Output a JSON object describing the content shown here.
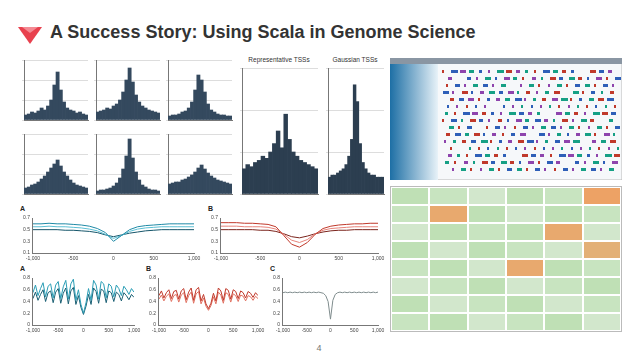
{
  "slide": {
    "title": "A Success Story: Using Scala in Genome Science",
    "page_number": 4
  },
  "chart_data": [
    {
      "type": "histogram",
      "bins": [
        -1000,
        -900,
        -800,
        -700,
        -600,
        -500,
        -400,
        -300,
        -200,
        -100,
        0,
        100,
        200,
        300,
        400,
        500,
        600,
        700,
        800,
        900,
        1000
      ],
      "counts": [
        5,
        6,
        8,
        7,
        9,
        12,
        10,
        14,
        20,
        35,
        48,
        30,
        18,
        12,
        10,
        9,
        7,
        8,
        6,
        5
      ],
      "color": "#34495e",
      "ylim": [
        0,
        60
      ],
      "yticks": [
        0,
        20,
        40,
        60
      ],
      "grid": true,
      "tick_labels": false
    },
    {
      "type": "histogram",
      "bins": [
        -1000,
        -900,
        -800,
        -700,
        -600,
        -500,
        -400,
        -300,
        -200,
        -100,
        0,
        100,
        200,
        300,
        400,
        500,
        600,
        700,
        800,
        900,
        1000
      ],
      "counts": [
        8,
        9,
        10,
        12,
        11,
        14,
        16,
        20,
        28,
        40,
        52,
        38,
        25,
        18,
        14,
        12,
        10,
        9,
        8,
        7
      ],
      "color": "#34495e",
      "ylim": [
        0,
        60
      ],
      "yticks": [
        0,
        20,
        40,
        60
      ],
      "grid": true,
      "tick_labels": false
    },
    {
      "type": "histogram",
      "bins": [
        -1000,
        -900,
        -800,
        -700,
        -600,
        -500,
        -400,
        -300,
        -200,
        -100,
        0,
        100,
        200,
        300,
        400,
        500,
        600,
        700,
        800,
        900,
        1000
      ],
      "counts": [
        4,
        5,
        5,
        6,
        8,
        9,
        12,
        18,
        30,
        45,
        40,
        28,
        16,
        10,
        8,
        6,
        5,
        5,
        4,
        4
      ],
      "color": "#34495e",
      "ylim": [
        0,
        60
      ],
      "yticks": [
        0,
        20,
        40,
        60
      ],
      "grid": true,
      "tick_labels": false
    },
    {
      "type": "histogram",
      "bins": [
        -1000,
        -900,
        -800,
        -700,
        -600,
        -500,
        -400,
        -300,
        -200,
        -100,
        0,
        100,
        200,
        300,
        400,
        500,
        600,
        700,
        800,
        900,
        1000
      ],
      "counts": [
        6,
        7,
        9,
        10,
        12,
        15,
        18,
        22,
        26,
        30,
        34,
        28,
        22,
        18,
        14,
        11,
        9,
        8,
        7,
        6
      ],
      "color": "#34495e",
      "ylim": [
        0,
        60
      ],
      "yticks": [
        0,
        20,
        40,
        60
      ],
      "grid": true,
      "tick_labels": false
    },
    {
      "type": "histogram",
      "bins": [
        -1000,
        -900,
        -800,
        -700,
        -600,
        -500,
        -400,
        -300,
        -200,
        -100,
        0,
        100,
        200,
        300,
        400,
        500,
        600,
        700,
        800,
        900,
        1000
      ],
      "counts": [
        3,
        4,
        4,
        5,
        6,
        8,
        11,
        16,
        25,
        38,
        55,
        36,
        22,
        14,
        9,
        7,
        5,
        4,
        4,
        3
      ],
      "color": "#34495e",
      "ylim": [
        0,
        60
      ],
      "yticks": [
        0,
        20,
        40,
        60
      ],
      "grid": true,
      "tick_labels": false
    },
    {
      "type": "histogram",
      "bins": [
        -1000,
        -900,
        -800,
        -700,
        -600,
        -500,
        -400,
        -300,
        -200,
        -100,
        0,
        100,
        200,
        300,
        400,
        500,
        600,
        700,
        800,
        900,
        1000
      ],
      "counts": [
        10,
        11,
        12,
        12,
        14,
        15,
        17,
        19,
        22,
        26,
        29,
        25,
        21,
        18,
        16,
        14,
        13,
        12,
        11,
        10
      ],
      "color": "#34495e",
      "ylim": [
        0,
        60
      ],
      "yticks": [
        0,
        20,
        40,
        60
      ],
      "grid": true,
      "tick_labels": false
    },
    {
      "type": "histogram",
      "title": "Representative TSSs",
      "bins": [
        -1000,
        -900,
        -800,
        -700,
        -600,
        -500,
        -400,
        -300,
        -200,
        -100,
        0,
        100,
        200,
        300,
        400,
        500,
        600,
        700,
        800,
        900,
        1000
      ],
      "counts": [
        12,
        14,
        13,
        15,
        16,
        18,
        17,
        20,
        24,
        30,
        22,
        38,
        26,
        20,
        18,
        16,
        15,
        14,
        13,
        12
      ],
      "color": "#2c3e50",
      "ylim": [
        0,
        60
      ],
      "yticks": [
        0,
        20,
        40,
        60
      ],
      "grid": true,
      "tick_labels": false
    },
    {
      "type": "histogram",
      "title": "Gaussian TSSs",
      "bins": [
        -1000,
        -900,
        -800,
        -700,
        -600,
        -500,
        -400,
        -300,
        -200,
        -100,
        0,
        100,
        200,
        300,
        400,
        500,
        600,
        700,
        800,
        900,
        1000
      ],
      "counts": [
        8,
        9,
        9,
        10,
        11,
        12,
        14,
        18,
        26,
        52,
        44,
        24,
        15,
        12,
        10,
        9,
        9,
        8,
        8,
        8
      ],
      "color": "#2c3e50",
      "ylim": [
        0,
        60
      ],
      "yticks": [
        0,
        20,
        40,
        60
      ],
      "grid": true,
      "tick_labels": false
    },
    {
      "type": "line",
      "panel_label": "A",
      "x": [
        -1000,
        -900,
        -800,
        -700,
        -600,
        -500,
        -400,
        -300,
        -200,
        -100,
        0,
        100,
        200,
        300,
        400,
        500,
        600,
        700,
        800,
        900,
        1000
      ],
      "series": [
        {
          "color": "#1f8aa6",
          "values": [
            0.6,
            0.6,
            0.61,
            0.6,
            0.6,
            0.59,
            0.58,
            0.56,
            0.52,
            0.45,
            0.3,
            0.4,
            0.5,
            0.55,
            0.57,
            0.58,
            0.59,
            0.6,
            0.6,
            0.6,
            0.6
          ]
        },
        {
          "color": "#5bbfd4",
          "values": [
            0.55,
            0.55,
            0.56,
            0.55,
            0.55,
            0.54,
            0.53,
            0.51,
            0.48,
            0.42,
            0.35,
            0.4,
            0.47,
            0.51,
            0.53,
            0.54,
            0.55,
            0.55,
            0.55,
            0.55,
            0.55
          ]
        },
        {
          "color": "#15556a",
          "values": [
            0.5,
            0.5,
            0.5,
            0.5,
            0.49,
            0.49,
            0.48,
            0.47,
            0.45,
            0.41,
            0.38,
            0.41,
            0.44,
            0.46,
            0.48,
            0.49,
            0.5,
            0.5,
            0.5,
            0.5,
            0.5
          ]
        }
      ],
      "xlim": [
        -1000,
        1000
      ],
      "xticks": [
        {
          "value": -1000,
          "label": "-1,000"
        },
        -500,
        0,
        500,
        {
          "value": 1000,
          "label": "1,000"
        }
      ],
      "ylim": [
        0.1,
        0.7
      ],
      "yticks": [
        0.1,
        0.3,
        0.5,
        0.7
      ],
      "grid": false
    },
    {
      "type": "line",
      "panel_label": "B",
      "x": [
        -1000,
        -900,
        -800,
        -700,
        -600,
        -500,
        -400,
        -300,
        -200,
        -100,
        0,
        100,
        200,
        300,
        400,
        500,
        600,
        700,
        800,
        900,
        1000
      ],
      "series": [
        {
          "color": "#c0392b",
          "values": [
            0.62,
            0.62,
            0.62,
            0.61,
            0.61,
            0.6,
            0.59,
            0.55,
            0.4,
            0.25,
            0.2,
            0.28,
            0.42,
            0.52,
            0.56,
            0.58,
            0.59,
            0.6,
            0.6,
            0.61,
            0.61
          ]
        },
        {
          "color": "#e8837a",
          "values": [
            0.56,
            0.56,
            0.56,
            0.55,
            0.55,
            0.55,
            0.54,
            0.51,
            0.42,
            0.32,
            0.28,
            0.33,
            0.43,
            0.49,
            0.52,
            0.53,
            0.54,
            0.55,
            0.55,
            0.55,
            0.55
          ]
        },
        {
          "color": "#7b241c",
          "values": [
            0.5,
            0.5,
            0.5,
            0.5,
            0.5,
            0.49,
            0.49,
            0.47,
            0.43,
            0.38,
            0.36,
            0.39,
            0.43,
            0.46,
            0.48,
            0.49,
            0.49,
            0.5,
            0.5,
            0.5,
            0.5
          ]
        }
      ],
      "xlim": [
        -1000,
        1000
      ],
      "xticks": [
        {
          "value": -1000,
          "label": "-1,000"
        },
        -500,
        0,
        500,
        {
          "value": 1000,
          "label": "1,000"
        }
      ],
      "ylim": [
        0.1,
        0.7
      ],
      "yticks": [
        0.1,
        0.3,
        0.5,
        0.7
      ],
      "grid": false
    },
    {
      "type": "line",
      "panel_label": "A",
      "x": [
        -1000,
        -950,
        -900,
        -850,
        -800,
        -750,
        -700,
        -650,
        -600,
        -550,
        -500,
        -450,
        -400,
        -350,
        -300,
        -250,
        -200,
        -150,
        -100,
        -50,
        0,
        50,
        100,
        150,
        200,
        250,
        300,
        350,
        400,
        450,
        500,
        550,
        600,
        650,
        700,
        750,
        800,
        850,
        900,
        950,
        1000
      ],
      "series": [
        {
          "color": "#2a9db5",
          "values": [
            0.55,
            0.68,
            0.5,
            0.62,
            0.72,
            0.48,
            0.66,
            0.7,
            0.46,
            0.68,
            0.74,
            0.45,
            0.65,
            0.76,
            0.44,
            0.7,
            0.78,
            0.42,
            0.6,
            0.35,
            0.2,
            0.38,
            0.62,
            0.42,
            0.76,
            0.68,
            0.44,
            0.74,
            0.7,
            0.46,
            0.7,
            0.66,
            0.48,
            0.68,
            0.62,
            0.5,
            0.66,
            0.6,
            0.52,
            0.62,
            0.56
          ]
        },
        {
          "color": "#1a5f73",
          "values": [
            0.45,
            0.56,
            0.42,
            0.52,
            0.6,
            0.4,
            0.55,
            0.58,
            0.38,
            0.56,
            0.62,
            0.37,
            0.54,
            0.63,
            0.36,
            0.58,
            0.64,
            0.35,
            0.5,
            0.3,
            0.18,
            0.32,
            0.52,
            0.35,
            0.63,
            0.57,
            0.37,
            0.61,
            0.58,
            0.38,
            0.58,
            0.55,
            0.4,
            0.56,
            0.52,
            0.41,
            0.55,
            0.5,
            0.43,
            0.52,
            0.47
          ]
        }
      ],
      "xlim": [
        -1000,
        1000
      ],
      "xticks": [
        {
          "value": -1000,
          "label": "-1,000"
        },
        -500,
        0,
        500,
        {
          "value": 1000,
          "label": "1,000"
        }
      ],
      "ylim": [
        0,
        0.8
      ],
      "yticks": [
        0,
        0.2,
        0.4,
        0.6,
        0.8
      ],
      "grid": false
    },
    {
      "type": "line",
      "panel_label": "B",
      "x": [
        -1000,
        -950,
        -900,
        -850,
        -800,
        -750,
        -700,
        -650,
        -600,
        -550,
        -500,
        -450,
        -400,
        -350,
        -300,
        -250,
        -200,
        -150,
        -100,
        -50,
        0,
        50,
        100,
        150,
        200,
        250,
        300,
        350,
        400,
        450,
        500,
        550,
        600,
        650,
        700,
        750,
        800,
        850,
        900,
        950,
        1000
      ],
      "series": [
        {
          "color": "#c0392b",
          "values": [
            0.5,
            0.58,
            0.46,
            0.55,
            0.6,
            0.45,
            0.57,
            0.59,
            0.44,
            0.58,
            0.62,
            0.43,
            0.56,
            0.63,
            0.42,
            0.6,
            0.64,
            0.41,
            0.52,
            0.36,
            0.28,
            0.37,
            0.54,
            0.41,
            0.63,
            0.58,
            0.42,
            0.62,
            0.59,
            0.44,
            0.6,
            0.57,
            0.45,
            0.58,
            0.55,
            0.46,
            0.57,
            0.54,
            0.47,
            0.55,
            0.5
          ]
        },
        {
          "color": "#e07060",
          "values": [
            0.44,
            0.51,
            0.41,
            0.49,
            0.53,
            0.4,
            0.5,
            0.52,
            0.39,
            0.51,
            0.55,
            0.38,
            0.5,
            0.56,
            0.37,
            0.53,
            0.57,
            0.36,
            0.46,
            0.32,
            0.25,
            0.33,
            0.48,
            0.36,
            0.56,
            0.51,
            0.37,
            0.55,
            0.52,
            0.39,
            0.53,
            0.5,
            0.4,
            0.51,
            0.49,
            0.41,
            0.5,
            0.48,
            0.42,
            0.49,
            0.45
          ]
        }
      ],
      "xlim": [
        -1000,
        1000
      ],
      "xticks": [
        {
          "value": -1000,
          "label": "-1,000"
        },
        -500,
        0,
        500,
        {
          "value": 1000,
          "label": "1,000"
        }
      ],
      "ylim": [
        0,
        0.8
      ],
      "yticks": [
        0,
        0.2,
        0.4,
        0.6,
        0.8
      ],
      "grid": false
    },
    {
      "type": "line",
      "panel_label": "C",
      "x": [
        -1000,
        -950,
        -900,
        -850,
        -800,
        -750,
        -700,
        -650,
        -600,
        -550,
        -500,
        -450,
        -400,
        -350,
        -300,
        -250,
        -200,
        -150,
        -100,
        -50,
        0,
        50,
        100,
        150,
        200,
        250,
        300,
        350,
        400,
        450,
        500,
        550,
        600,
        650,
        700,
        750,
        800,
        850,
        900,
        950,
        1000
      ],
      "series": [
        {
          "color": "#7f8c8d",
          "values": [
            0.55,
            0.56,
            0.55,
            0.56,
            0.55,
            0.56,
            0.55,
            0.56,
            0.55,
            0.56,
            0.55,
            0.56,
            0.55,
            0.56,
            0.55,
            0.56,
            0.55,
            0.54,
            0.5,
            0.4,
            0.1,
            0.42,
            0.52,
            0.55,
            0.56,
            0.55,
            0.56,
            0.55,
            0.56,
            0.55,
            0.56,
            0.55,
            0.56,
            0.55,
            0.56,
            0.55,
            0.56,
            0.55,
            0.56,
            0.55,
            0.56
          ]
        }
      ],
      "xlim": [
        -1000,
        1000
      ],
      "xticks": [
        {
          "value": -1000,
          "label": "-1,000"
        },
        -500,
        0,
        500,
        {
          "value": 1000,
          "label": "1,000"
        }
      ],
      "ylim": [
        0,
        0.8
      ],
      "yticks": [
        0,
        0.2,
        0.4,
        0.6,
        0.8
      ],
      "grid": false
    },
    {
      "type": "heatmap",
      "cells": [
        [
          0.5,
          0.4,
          0.3,
          0.5,
          0.4,
          0.95
        ],
        [
          0.4,
          0.9,
          0.5,
          0.3,
          0.5,
          0.4
        ],
        [
          0.3,
          0.5,
          0.4,
          0.5,
          0.9,
          0.3
        ],
        [
          0.5,
          0.3,
          0.5,
          0.4,
          0.3,
          0.85
        ],
        [
          0.4,
          0.5,
          0.3,
          0.9,
          0.5,
          0.4
        ],
        [
          0.3,
          0.4,
          0.5,
          0.3,
          0.4,
          0.5
        ],
        [
          0.5,
          0.3,
          0.4,
          0.5,
          0.3,
          0.4
        ],
        [
          0.4,
          0.5,
          0.3,
          0.4,
          0.5,
          0.3
        ]
      ]
    }
  ]
}
